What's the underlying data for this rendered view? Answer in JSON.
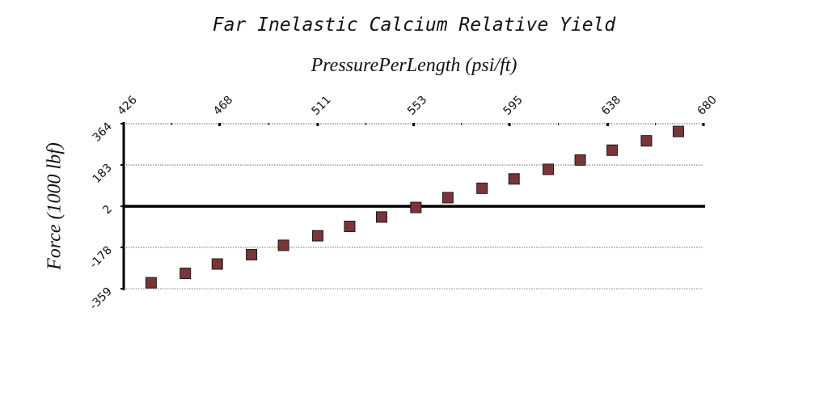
{
  "chart_data": {
    "type": "scatter",
    "title": "Far Inelastic Calcium Relative Yield",
    "xlabel": "PressurePerLength (psi/ft)",
    "ylabel": "Force (1000 lbf)",
    "x_ticks": [
      "426",
      "468",
      "511",
      "553",
      "595",
      "638",
      "680"
    ],
    "y_ticks": [
      "364",
      "183",
      "2",
      "-178",
      "-359"
    ],
    "xlim": [
      426,
      680
    ],
    "ylim": [
      -359,
      364
    ],
    "x_axis_position": "top",
    "zero_line": 2,
    "grid": "horizontal dotted",
    "marker_color": "#7a3538",
    "points": [
      {
        "x": 438,
        "y": -333
      },
      {
        "x": 453,
        "y": -292
      },
      {
        "x": 467,
        "y": -251
      },
      {
        "x": 482,
        "y": -210
      },
      {
        "x": 496,
        "y": -169
      },
      {
        "x": 511,
        "y": -127
      },
      {
        "x": 525,
        "y": -86
      },
      {
        "x": 539,
        "y": -45
      },
      {
        "x": 554,
        "y": -3
      },
      {
        "x": 568,
        "y": 40
      },
      {
        "x": 583,
        "y": 81
      },
      {
        "x": 597,
        "y": 122
      },
      {
        "x": 612,
        "y": 164
      },
      {
        "x": 626,
        "y": 205
      },
      {
        "x": 640,
        "y": 248
      },
      {
        "x": 655,
        "y": 289
      },
      {
        "x": 669,
        "y": 330
      }
    ]
  }
}
